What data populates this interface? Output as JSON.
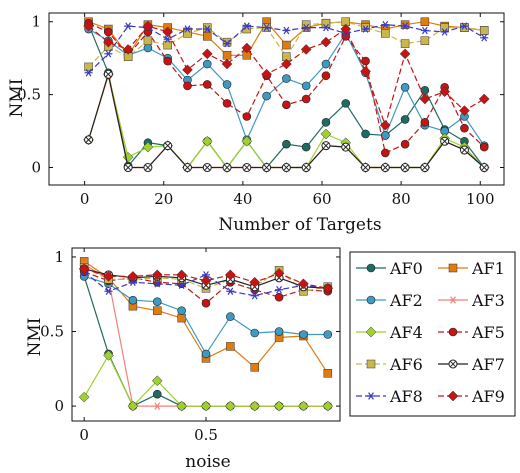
{
  "chart_data": [
    {
      "type": "line",
      "xlabel": "Number of Targets",
      "ylabel": "NMI",
      "xlim": [
        -9,
        106
      ],
      "ylim": [
        -0.12,
        1.06
      ],
      "xticks": [
        0,
        20,
        40,
        60,
        80,
        100
      ],
      "yticks": [
        0,
        0.5,
        1
      ],
      "x": [
        1,
        6,
        11,
        16,
        21,
        26,
        31,
        36,
        41,
        46,
        51,
        56,
        61,
        66,
        71,
        76,
        81,
        86,
        91,
        96,
        101
      ],
      "series": [
        {
          "name": "AF0",
          "values": [
            0.98,
            0.65,
            0.01,
            0.17,
            0.15,
            0.0,
            0.18,
            0.0,
            0.18,
            0.0,
            0.16,
            0.14,
            0.31,
            0.44,
            0.23,
            0.22,
            0.33,
            0.53,
            0.26,
            0.18,
            0.0
          ]
        },
        {
          "name": "AF1",
          "values": [
            1.0,
            0.95,
            0.77,
            0.98,
            0.96,
            0.93,
            0.9,
            0.77,
            0.77,
            1.0,
            0.84,
            0.96,
            0.99,
            1.0,
            0.98,
            0.95,
            0.98,
            1.0,
            0.97,
            0.96,
            0.94
          ]
        },
        {
          "name": "AF2",
          "values": [
            0.95,
            0.87,
            0.77,
            0.82,
            0.75,
            0.6,
            0.71,
            0.57,
            0.19,
            0.49,
            0.61,
            0.56,
            0.71,
            0.92,
            0.65,
            0.22,
            0.55,
            0.29,
            0.25,
            0.35,
            0.15
          ]
        },
        {
          "name": "AF3",
          "values": [
            0.19,
            0.63,
            0.0,
            0.0,
            0.15,
            0.0,
            0.0,
            0.0,
            0.0,
            0.0,
            0.0,
            0.0,
            0.15,
            0.14,
            0.0,
            0.0,
            0.0,
            0.0,
            0.18,
            0.12,
            0.0
          ]
        },
        {
          "name": "AF4",
          "values": [
            0.19,
            0.64,
            0.07,
            0.14,
            0.15,
            0.0,
            0.18,
            0.0,
            0.18,
            0.0,
            0.0,
            0.0,
            0.23,
            0.17,
            0.0,
            0.0,
            0.0,
            0.0,
            0.2,
            0.14,
            0.0
          ]
        },
        {
          "name": "AF5",
          "values": [
            0.99,
            0.93,
            0.77,
            0.93,
            0.73,
            0.56,
            0.57,
            0.44,
            0.35,
            0.63,
            0.43,
            0.47,
            0.63,
            0.9,
            0.73,
            0.1,
            0.16,
            0.31,
            0.55,
            0.27,
            0.14
          ]
        },
        {
          "name": "AF6",
          "values": [
            0.69,
            0.83,
            0.76,
            0.87,
            0.84,
            0.92,
            0.96,
            0.86,
            0.95,
            0.96,
            0.76,
            0.98,
            0.99,
            1.0,
            0.96,
            0.92,
            0.85,
            0.87,
            0.96,
            0.96,
            0.94
          ]
        },
        {
          "name": "AF7",
          "values": [
            0.19,
            0.64,
            0.0,
            0.0,
            0.15,
            0.0,
            0.0,
            0.0,
            0.0,
            0.0,
            0.0,
            0.0,
            0.15,
            0.14,
            0.0,
            0.0,
            0.0,
            0.0,
            0.18,
            0.12,
            0.0
          ]
        },
        {
          "name": "AF8",
          "values": [
            0.65,
            0.78,
            0.97,
            0.96,
            0.88,
            0.95,
            0.95,
            0.85,
            0.97,
            0.96,
            0.94,
            0.96,
            0.96,
            0.92,
            0.95,
            0.98,
            0.97,
            0.94,
            0.93,
            0.97,
            0.89
          ]
        },
        {
          "name": "AF9",
          "values": [
            0.97,
            0.86,
            0.81,
            0.97,
            0.93,
            0.67,
            0.78,
            0.71,
            0.82,
            0.64,
            0.71,
            0.81,
            0.86,
            0.95,
            0.66,
            0.29,
            0.78,
            0.47,
            0.52,
            0.39,
            0.47
          ]
        }
      ]
    },
    {
      "type": "line",
      "xlabel": "noise",
      "ylabel": "NMI",
      "xlim": [
        -0.05,
        1.05
      ],
      "ylim": [
        -0.1,
        1.06
      ],
      "xticks": [
        0,
        0.5
      ],
      "xticklabels": [
        "0",
        "0.5"
      ],
      "yticks": [
        0,
        0.5,
        1
      ],
      "x": [
        0,
        0.1,
        0.2,
        0.3,
        0.4,
        0.5,
        0.6,
        0.7,
        0.8,
        0.9,
        1.0
      ],
      "series": [
        {
          "name": "AF0",
          "values": [
            0.87,
            0.35,
            0.0,
            0.08,
            0.0,
            0.0,
            0.0,
            0.0,
            0.0,
            0.0,
            0.0
          ]
        },
        {
          "name": "AF1",
          "values": [
            0.97,
            0.86,
            0.67,
            0.64,
            0.59,
            0.32,
            0.4,
            0.26,
            0.46,
            0.47,
            0.22
          ]
        },
        {
          "name": "AF2",
          "values": [
            0.87,
            0.82,
            0.71,
            0.7,
            0.64,
            0.35,
            0.6,
            0.49,
            0.5,
            0.48,
            0.48
          ]
        },
        {
          "name": "AF3",
          "values": [
            0.95,
            0.85,
            0.0,
            0.0,
            0.0,
            0.0,
            0.0,
            0.0,
            0.0,
            0.0,
            0.0
          ]
        },
        {
          "name": "AF4",
          "values": [
            0.06,
            0.34,
            0.0,
            0.17,
            0.0,
            0.0,
            0.0,
            0.0,
            0.0,
            0.0,
            0.0
          ]
        },
        {
          "name": "AF5",
          "values": [
            0.9,
            0.84,
            0.86,
            0.83,
            0.82,
            0.69,
            0.83,
            0.78,
            0.73,
            0.78,
            0.77
          ]
        },
        {
          "name": "AF6",
          "values": [
            0.93,
            0.85,
            0.85,
            0.86,
            0.85,
            0.79,
            0.85,
            0.8,
            0.91,
            0.77,
            0.8
          ]
        },
        {
          "name": "AF7",
          "values": [
            0.92,
            0.88,
            0.86,
            0.87,
            0.86,
            0.81,
            0.85,
            0.8,
            0.86,
            0.8,
            0.79
          ]
        },
        {
          "name": "AF8",
          "values": [
            0.9,
            0.77,
            0.83,
            0.82,
            0.81,
            0.88,
            0.77,
            0.74,
            0.78,
            0.81,
            0.79
          ]
        },
        {
          "name": "AF9",
          "values": [
            0.92,
            0.87,
            0.87,
            0.88,
            0.88,
            0.84,
            0.88,
            0.83,
            0.89,
            0.82,
            0.79
          ]
        }
      ]
    }
  ],
  "legend": {
    "entries": [
      "AF0",
      "AF1",
      "AF2",
      "AF3",
      "AF4",
      "AF5",
      "AF6",
      "AF7",
      "AF8",
      "AF9"
    ],
    "columns": 2,
    "position": "right of bottom panel"
  },
  "styles": {
    "AF0": {
      "color": "#1f6b63",
      "dash": false,
      "marker": "circle"
    },
    "AF1": {
      "color": "#e07b10",
      "dash": false,
      "marker": "square"
    },
    "AF2": {
      "color": "#3d9bc3",
      "dash": false,
      "marker": "circle"
    },
    "AF3": {
      "color": "#f0827a",
      "dash": false,
      "marker": "star"
    },
    "AF4": {
      "color": "#9fd12e",
      "dash": false,
      "marker": "diamond"
    },
    "AF5": {
      "color": "#c41414",
      "dash": true,
      "marker": "circle"
    },
    "AF6": {
      "color": "#c9b74c",
      "dash": true,
      "marker": "square"
    },
    "AF7": {
      "color": "#222222",
      "dash": false,
      "marker": "otimes"
    },
    "AF8": {
      "color": "#3a3ac4",
      "dash": true,
      "marker": "star"
    },
    "AF9": {
      "color": "#c41414",
      "dash": true,
      "marker": "diamond"
    }
  }
}
